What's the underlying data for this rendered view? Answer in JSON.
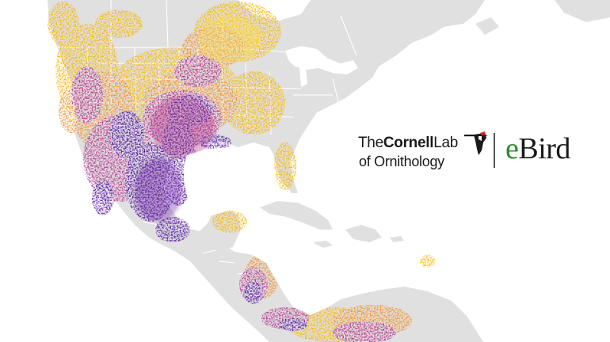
{
  "map": {
    "land_color": "#e0e0e0",
    "border_color": "#ffffff",
    "water_color": "#ffffff",
    "density_colors": [
      "#fde047",
      "#f7b500",
      "#f28a1e",
      "#d9434f",
      "#b02a8b",
      "#6b1fa3",
      "#4b0e9c"
    ]
  },
  "branding": {
    "cornell_prefix": "The",
    "cornell_bold": "Cornell",
    "cornell_suffix": "Lab",
    "cornell_line2": "of Ornithology",
    "ebird_e": "e",
    "ebird_rest": "Bird",
    "ebird_e_color": "#2e8b2e"
  }
}
